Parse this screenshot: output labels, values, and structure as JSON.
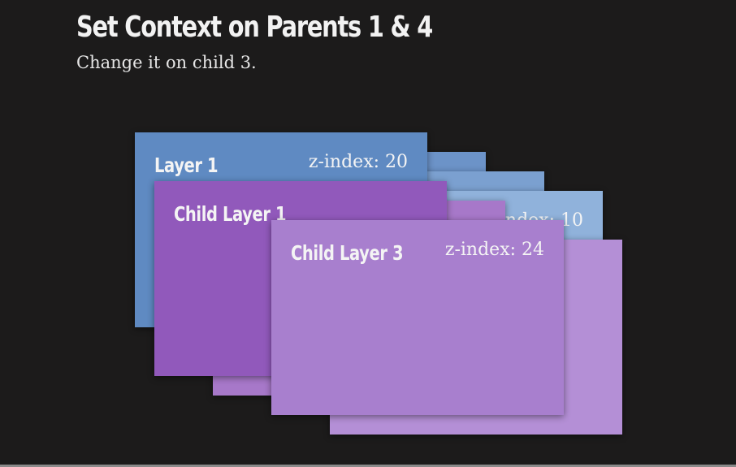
{
  "title": "Set Context on Parents 1 & 4",
  "subtitle": "Change it on child 3.",
  "layers": {
    "layer_1": {
      "label": "Layer 1",
      "z_index": "z-index: 20"
    },
    "layer_4": {
      "z_index": "z-index: 10"
    },
    "child_layer_1": {
      "label": "Child Layer 1"
    },
    "child_layer_3": {
      "label": "Child Layer 3",
      "z_index": "z-index: 24"
    }
  },
  "colors": {
    "background": "#1c1b1b",
    "blue_layer": "#5f8ac2",
    "child_layer_1": "#9159bb",
    "child_layer_3": "#a87fce",
    "child_layer_4": "#b48fd6",
    "text": "#f4f4f4"
  }
}
